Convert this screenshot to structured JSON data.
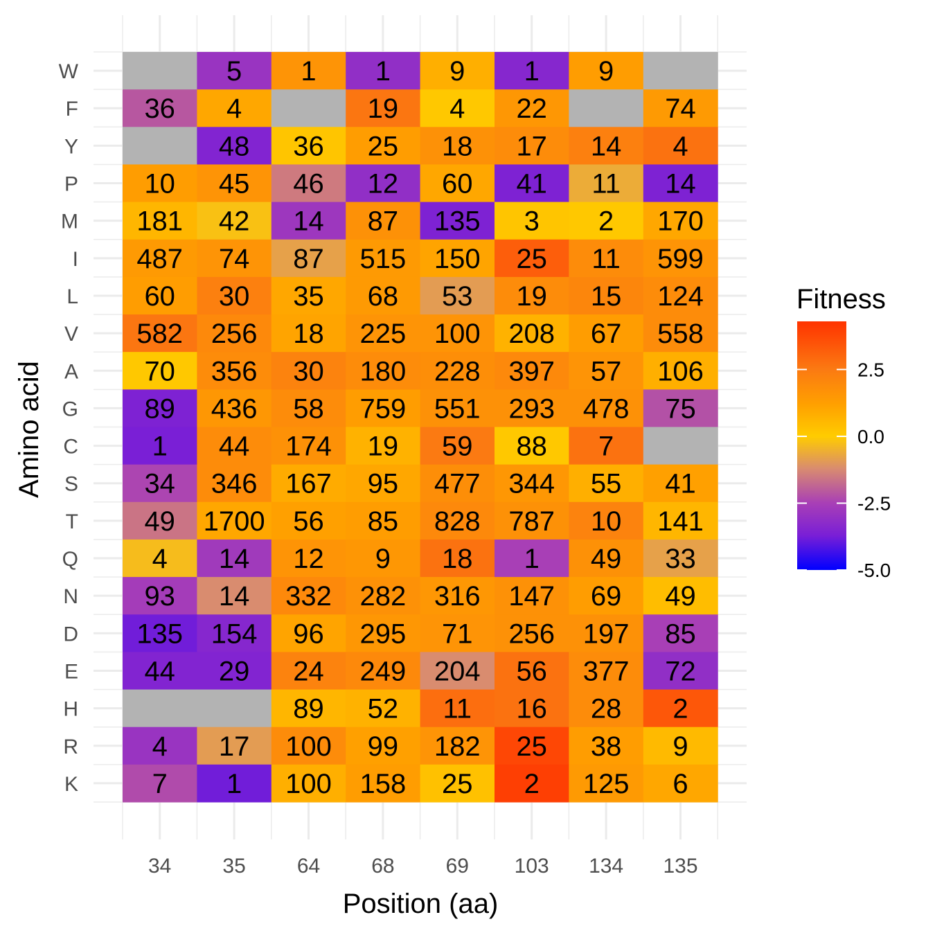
{
  "chart_data": {
    "type": "heatmap",
    "xlabel": "Position (aa)",
    "ylabel": "Amino acid",
    "x_categories": [
      "34",
      "35",
      "64",
      "68",
      "69",
      "103",
      "134",
      "135"
    ],
    "y_categories": [
      "W",
      "F",
      "Y",
      "P",
      "M",
      "I",
      "L",
      "V",
      "A",
      "G",
      "C",
      "S",
      "T",
      "Q",
      "N",
      "D",
      "E",
      "H",
      "R",
      "K"
    ],
    "counts": [
      [
        null,
        5,
        1,
        1,
        9,
        1,
        9,
        null
      ],
      [
        36,
        4,
        null,
        19,
        4,
        22,
        null,
        74
      ],
      [
        null,
        48,
        36,
        25,
        18,
        17,
        14,
        4
      ],
      [
        10,
        45,
        46,
        12,
        60,
        41,
        11,
        14
      ],
      [
        181,
        42,
        14,
        87,
        135,
        3,
        2,
        170
      ],
      [
        487,
        74,
        87,
        515,
        150,
        25,
        11,
        599
      ],
      [
        60,
        30,
        35,
        68,
        53,
        19,
        15,
        124
      ],
      [
        582,
        256,
        18,
        225,
        100,
        208,
        67,
        558
      ],
      [
        70,
        356,
        30,
        180,
        228,
        397,
        57,
        106
      ],
      [
        89,
        436,
        58,
        759,
        551,
        293,
        478,
        75
      ],
      [
        1,
        44,
        174,
        19,
        59,
        88,
        7,
        null
      ],
      [
        34,
        346,
        167,
        95,
        477,
        344,
        55,
        41
      ],
      [
        49,
        1700,
        56,
        85,
        828,
        787,
        10,
        141
      ],
      [
        4,
        14,
        12,
        9,
        18,
        1,
        49,
        33
      ],
      [
        93,
        14,
        332,
        282,
        316,
        147,
        69,
        49
      ],
      [
        135,
        154,
        96,
        295,
        71,
        256,
        197,
        85
      ],
      [
        44,
        29,
        24,
        249,
        204,
        56,
        377,
        72
      ],
      [
        null,
        null,
        89,
        52,
        11,
        16,
        28,
        2
      ],
      [
        4,
        17,
        100,
        99,
        182,
        25,
        38,
        9
      ],
      [
        7,
        1,
        100,
        158,
        25,
        2,
        125,
        6
      ]
    ],
    "fitness": [
      [
        null,
        -2.9,
        1.6,
        -3.1,
        0.8,
        -3.4,
        1.3,
        null
      ],
      [
        -2.1,
        1.0,
        null,
        2.6,
        0.1,
        1.5,
        null,
        1.4
      ],
      [
        null,
        -3.5,
        0.2,
        1.3,
        1.7,
        1.9,
        2.3,
        2.7
      ],
      [
        1.3,
        1.6,
        -1.5,
        -3.1,
        1.0,
        -3.6,
        -0.6,
        -3.6
      ],
      [
        0.6,
        -0.2,
        -2.8,
        1.7,
        -3.6,
        0.2,
        0.1,
        1.0
      ],
      [
        1.4,
        1.6,
        -0.8,
        1.4,
        1.1,
        3.2,
        1.9,
        1.6
      ],
      [
        1.3,
        2.3,
        1.0,
        1.4,
        -0.9,
        1.9,
        2.1,
        1.9
      ],
      [
        2.6,
        2.0,
        1.1,
        1.6,
        1.6,
        0.7,
        1.3,
        1.9
      ],
      [
        0.1,
        1.9,
        2.2,
        1.9,
        1.8,
        2.0,
        1.6,
        0.8
      ],
      [
        -3.6,
        1.5,
        1.9,
        1.3,
        1.7,
        1.7,
        1.7,
        -2.2
      ],
      [
        -3.7,
        1.9,
        1.7,
        0.7,
        2.5,
        0.1,
        2.7,
        null
      ],
      [
        -2.4,
        1.9,
        0.9,
        1.0,
        1.8,
        1.5,
        0.8,
        1.2
      ],
      [
        -1.6,
        1.0,
        1.2,
        1.3,
        2.0,
        1.7,
        2.2,
        0.6
      ],
      [
        -0.3,
        -2.7,
        1.6,
        1.5,
        2.7,
        -2.5,
        1.7,
        -0.8
      ],
      [
        -2.6,
        -1.2,
        2.0,
        1.7,
        1.5,
        1.7,
        1.3,
        0.4
      ],
      [
        -3.8,
        -3.4,
        1.1,
        1.5,
        1.6,
        1.7,
        1.7,
        -2.5
      ],
      [
        -3.5,
        -3.5,
        2.2,
        2.0,
        -1.2,
        2.7,
        1.9,
        -3.1
      ],
      [
        null,
        null,
        0.6,
        0.7,
        2.8,
        2.7,
        1.9,
        3.4
      ],
      [
        -2.9,
        -0.9,
        1.9,
        1.2,
        1.6,
        3.8,
        1.3,
        0.5
      ],
      [
        -2.3,
        -3.8,
        0.8,
        1.3,
        0.3,
        4.0,
        1.4,
        1.0
      ]
    ],
    "missing_color": "#b3b3b3",
    "grid": true,
    "legend": {
      "title": "Fitness",
      "position": "right",
      "range": [
        -5.0,
        4.3
      ],
      "ticks": [
        -5.0,
        -2.5,
        0.0,
        2.5
      ],
      "tick_labels": [
        "-5.0",
        "-2.5",
        "0.0",
        "2.5"
      ],
      "colors": [
        {
          "value": -5.0,
          "color": "#0000ff"
        },
        {
          "value": -3.7,
          "color": "#7a1fd6"
        },
        {
          "value": -2.5,
          "color": "#a83fb6"
        },
        {
          "value": -1.2,
          "color": "#d98c6f"
        },
        {
          "value": 0.0,
          "color": "#ffcc00"
        },
        {
          "value": 1.2,
          "color": "#ffa000"
        },
        {
          "value": 2.5,
          "color": "#fb7a12"
        },
        {
          "value": 4.3,
          "color": "#ff3300"
        }
      ]
    }
  }
}
